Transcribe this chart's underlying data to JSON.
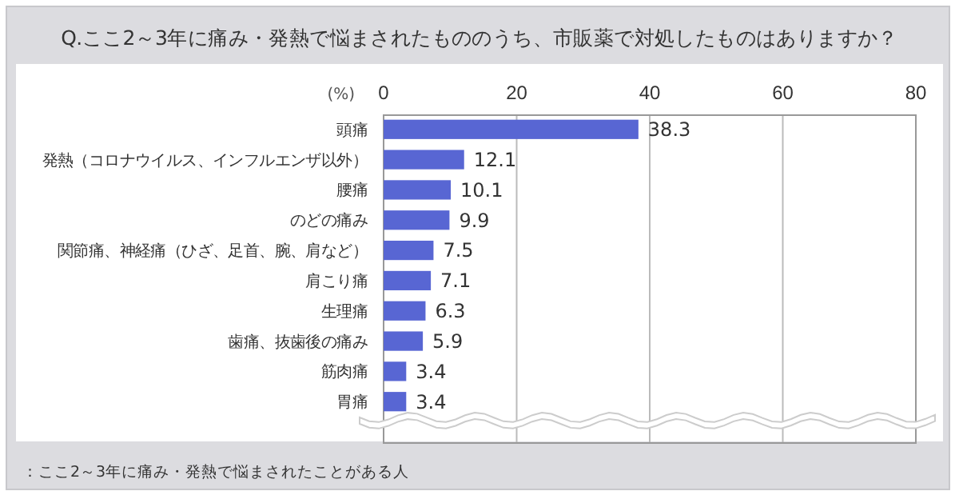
{
  "chart_data": {
    "type": "bar",
    "orientation": "horizontal",
    "title": "Q.ここ2～3年に痛み・発熱で悩まされたもののうち、市販薬で対処したものはありますか？",
    "xlabel": "(%)",
    "categories": [
      "頭痛",
      "発熱（コロナウイルス、インフルエンザ以外）",
      "腰痛",
      "のどの痛み",
      "関節痛、神経痛（ひざ、足首、腕、肩など）",
      "肩こり痛",
      "生理痛",
      "歯痛、抜歯後の痛み",
      "筋肉痛",
      "胃痛"
    ],
    "values": [
      38.3,
      12.1,
      10.1,
      9.9,
      7.5,
      7.1,
      6.3,
      5.9,
      3.4,
      3.4
    ],
    "color": "#5866d3",
    "xlim": [
      0,
      80
    ],
    "xticks": [
      0,
      20,
      40,
      60,
      80
    ],
    "grid": "x",
    "data_labels": true,
    "annotations": [
      "：ここ2～3年に痛み・発熱で悩まされたことがある人"
    ]
  }
}
